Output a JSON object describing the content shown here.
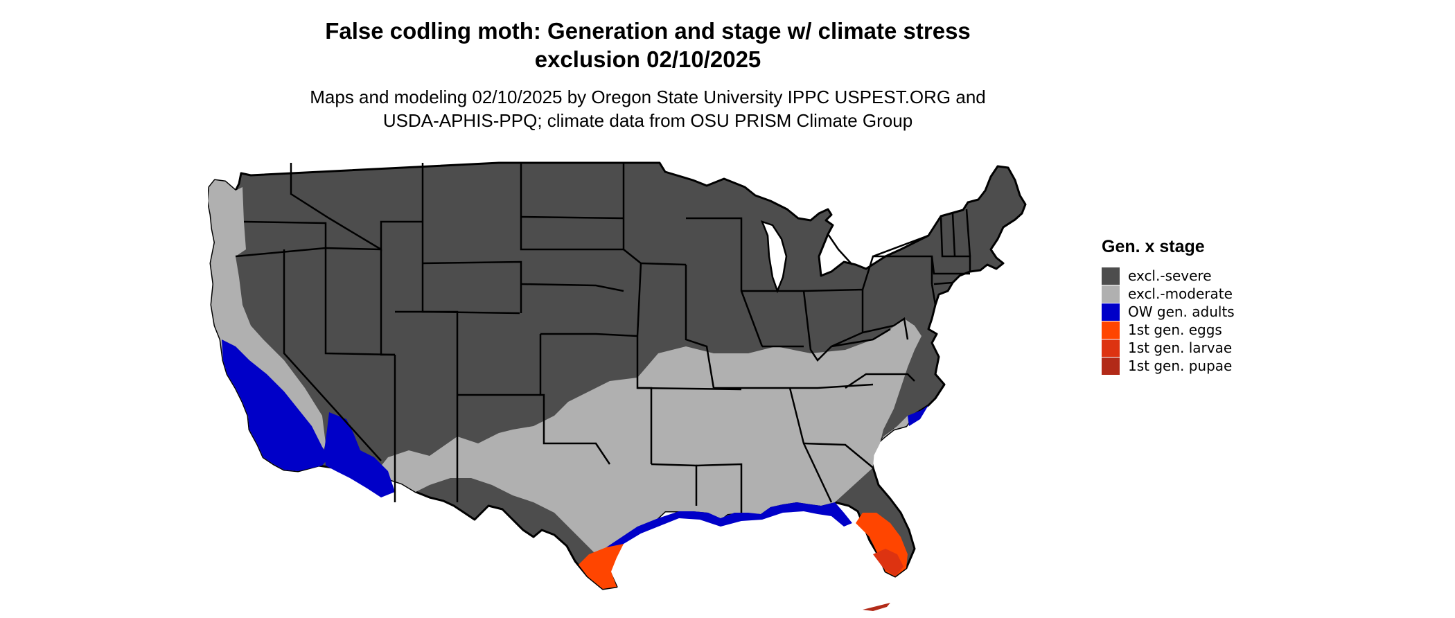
{
  "title_line1": "False codling moth: Generation and stage w/ climate stress",
  "title_line2": "exclusion 02/10/2025",
  "subtitle_line1": "Maps and modeling 02/10/2025 by Oregon State University IPPC USPEST.ORG and",
  "subtitle_line2": "USDA-APHIS-PPQ; climate data from OSU PRISM Climate Group",
  "legend": {
    "title": "Gen. x stage",
    "items": [
      {
        "label": "excl.-severe",
        "color": "#4d4d4d"
      },
      {
        "label": "excl.-moderate",
        "color": "#b0b0b0"
      },
      {
        "label": "OW gen. adults",
        "color": "#0000c8"
      },
      {
        "label": "1st gen. eggs",
        "color": "#ff4500"
      },
      {
        "label": "1st gen. larvae",
        "color": "#dd3311"
      },
      {
        "label": "1st gen. pupae",
        "color": "#b22a18"
      }
    ]
  }
}
